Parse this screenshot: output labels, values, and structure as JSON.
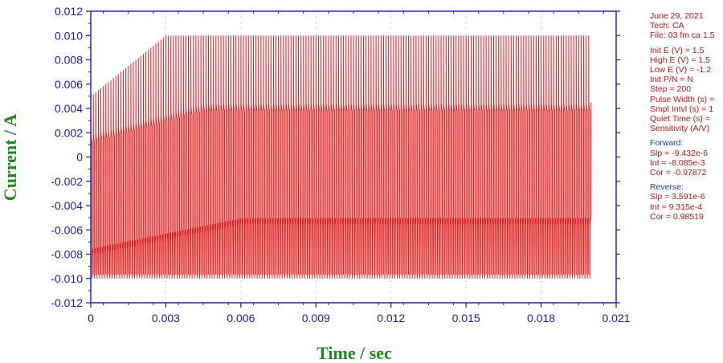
{
  "chart_data": {
    "type": "line",
    "xlabel": "Time / sec",
    "ylabel": "Current / A",
    "xlim": [
      0,
      0.021
    ],
    "ylim": [
      -0.012,
      0.012
    ],
    "xticks": [
      "0",
      "0.003",
      "0.006",
      "0.009",
      "0.012",
      "0.015",
      "0.018",
      "0.021"
    ],
    "yticks": [
      "0.012",
      "0.010",
      "0.008",
      "0.006",
      "0.004",
      "0.002",
      "0",
      "-0.002",
      "-0.004",
      "-0.006",
      "-0.008",
      "-0.010",
      "-0.012"
    ],
    "grid": "dotted-vertical",
    "series": [
      {
        "color": "#e02020",
        "waveform": "alternating current pulses",
        "pulse_period": 0.0001,
        "t_end": 0.02,
        "forward_peak_start": 0.005,
        "forward_peak_max": 0.01,
        "forward_decay_start": 0.0012,
        "forward_decay_settled": 0.0038,
        "reverse_peak": -0.01,
        "reverse_decay_start": -0.0075,
        "reverse_decay_settled": -0.005
      }
    ]
  },
  "info_panel": {
    "header": [
      "June 29, 2021",
      "Tech: CA",
      "File: 03 fm ca 1.5"
    ],
    "params": [
      "Init E (V) = 1.5",
      "High E (V) = 1.5",
      "Low E (V) = -1.2",
      "Init P/N = N",
      "Step = 200",
      "Pulse Width (s) =",
      "Smpl Intvl (s) = 1",
      "Quiet Time (s) =",
      "Sensitivity (A/V)"
    ],
    "forward": {
      "title": "Forward:",
      "lines": [
        "Slp = -9.432e-6",
        "Int = -8.085e-3",
        "Cor = -0.97872"
      ]
    },
    "reverse": {
      "title": "Reverse:",
      "lines": [
        "Slp = 3.591e-6",
        "Int = 9.315e-4",
        "Cor = 0.98519"
      ]
    }
  },
  "colors": {
    "axis": "#1a1aa6",
    "trace": "#e02020",
    "axis_title": "#1b8a1b"
  }
}
